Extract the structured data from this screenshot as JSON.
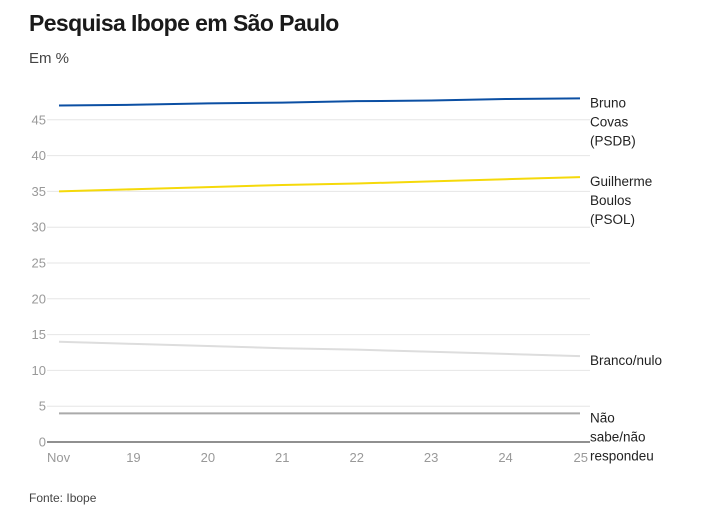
{
  "title": "Pesquisa Ibope em São Paulo",
  "subtitle": "Em %",
  "source": "Fonte: Ibope",
  "chart_data": {
    "type": "line",
    "x": [
      "Nov",
      "19",
      "20",
      "21",
      "22",
      "23",
      "24",
      "25"
    ],
    "ylim": [
      0,
      50
    ],
    "yticks": [
      0,
      5,
      10,
      15,
      20,
      25,
      30,
      35,
      40,
      45
    ],
    "grid": true,
    "legend": "end-of-line labels",
    "series": [
      {
        "name": "Bruno Covas (PSDB)",
        "label_lines": [
          "Bruno",
          "Covas",
          "(PSDB)"
        ],
        "color": "#0b4fa3",
        "values": [
          47,
          47.1,
          47.3,
          47.4,
          47.6,
          47.7,
          47.9,
          48
        ]
      },
      {
        "name": "Guilherme Boulos (PSOL)",
        "label_lines": [
          "Guilherme",
          "Boulos",
          "(PSOL)"
        ],
        "color": "#f5d90a",
        "values": [
          35,
          35.3,
          35.6,
          35.9,
          36.1,
          36.4,
          36.7,
          37
        ]
      },
      {
        "name": "Branco/nulo",
        "label_lines": [
          "Branco/nulo"
        ],
        "color": "#dddddd",
        "values": [
          14,
          13.7,
          13.4,
          13.1,
          12.9,
          12.6,
          12.3,
          12
        ]
      },
      {
        "name": "Não sabe/não respondeu",
        "label_lines": [
          "Não",
          "sabe/não",
          "respondeu"
        ],
        "color": "#aaaaaa",
        "values": [
          4,
          4,
          4,
          4,
          4,
          4,
          4,
          4
        ]
      }
    ]
  }
}
